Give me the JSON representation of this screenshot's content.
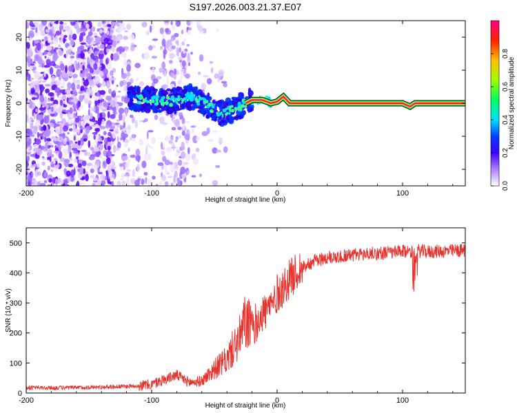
{
  "page_title": "S197.2026.003.21.37.E07",
  "chart_data": [
    {
      "type": "heatmap",
      "xlabel": "Height of straight line (km)",
      "ylabel": "Frequency (Hz)",
      "xlim": [
        -200,
        150
      ],
      "ylim": [
        -25,
        25
      ],
      "xticks": [
        -200,
        -100,
        0,
        100
      ],
      "yticks": [
        -20,
        -10,
        0,
        10,
        20
      ],
      "colorbar": {
        "label": "Normalized spectral amplitude",
        "ticks": [
          0.0,
          0.2,
          0.4,
          0.6,
          0.8
        ],
        "range": [
          0,
          1
        ],
        "colors": [
          "#ffffff",
          "#b080ff",
          "#4000ff",
          "#0040ff",
          "#00e0ff",
          "#00ff60",
          "#a0ff00",
          "#ffc000",
          "#ff2000",
          "#ff0080"
        ]
      },
      "trace": {
        "name": "frequency ridge",
        "x": [
          -115,
          -105,
          -95,
          -85,
          -75,
          -68,
          -60,
          -52,
          -45,
          -38,
          -30,
          -25,
          -20,
          -12,
          -5,
          0,
          5,
          10,
          20,
          50,
          100,
          106,
          110,
          150
        ],
        "y": [
          1.5,
          1.2,
          0.8,
          0.5,
          1.5,
          2.0,
          0.5,
          -1.5,
          -3.0,
          -2.5,
          -1.0,
          0.0,
          1.0,
          1.0,
          0.0,
          0.5,
          2.0,
          0.0,
          0.0,
          0.0,
          0.0,
          -1.0,
          0.0,
          0.0
        ]
      }
    },
    {
      "type": "line",
      "xlabel": "Height of straight line (km)",
      "ylabel": "SNR (10 * v/v)",
      "xlim": [
        -200,
        150
      ],
      "ylim": [
        0,
        550
      ],
      "xticks": [
        -200,
        -100,
        0,
        100
      ],
      "yticks": [
        0,
        100,
        200,
        300,
        400,
        500
      ],
      "series": [
        {
          "name": "SNR",
          "color": "#e8322d",
          "x": [
            -200,
            -180,
            -160,
            -140,
            -120,
            -100,
            -90,
            -80,
            -70,
            -60,
            -50,
            -40,
            -35,
            -30,
            -25,
            -20,
            -15,
            -10,
            -5,
            0,
            5,
            10,
            15,
            20,
            30,
            40,
            50,
            60,
            80,
            100,
            110,
            120,
            150
          ],
          "y": [
            18,
            17,
            18,
            20,
            22,
            28,
            45,
            60,
            35,
            40,
            80,
            110,
            150,
            180,
            240,
            210,
            250,
            270,
            290,
            330,
            350,
            380,
            400,
            420,
            440,
            450,
            455,
            460,
            465,
            470,
            475,
            470,
            475
          ]
        }
      ]
    }
  ]
}
